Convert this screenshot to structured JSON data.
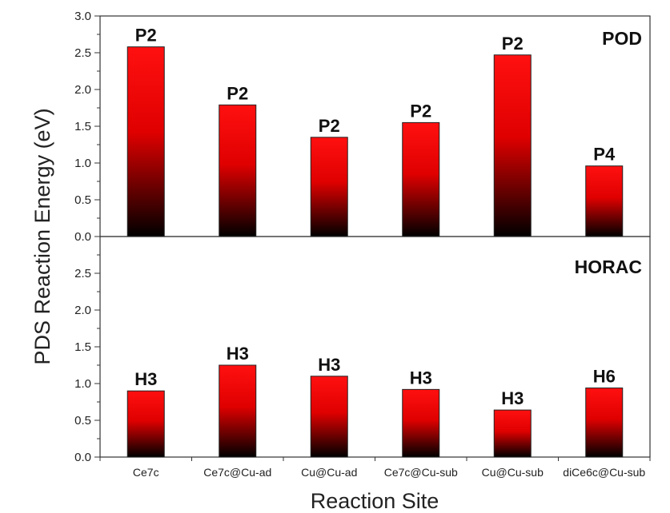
{
  "chart_data": {
    "type": "bar",
    "xlabel": "Reaction Site",
    "ylabel": "PDS Reaction Energy (eV)",
    "categories": [
      "Ce7c",
      "Ce7c@Cu-ad",
      "Cu@Cu-ad",
      "Ce7c@Cu-sub",
      "Cu@Cu-sub",
      "diCe6c@Cu-sub"
    ],
    "ylim": [
      0,
      3.0
    ],
    "yticks": [
      "0.0",
      "0.5",
      "1.0",
      "1.5",
      "2.0",
      "2.5",
      "3.0"
    ],
    "grid": false,
    "bar_gradient": {
      "top": "#ff1010",
      "bottom": "#000000"
    },
    "panels": [
      {
        "title": "POD",
        "values": [
          2.58,
          1.79,
          1.35,
          1.55,
          2.47,
          0.96
        ],
        "labels": [
          "P2",
          "P2",
          "P2",
          "P2",
          "P2",
          "P4"
        ]
      },
      {
        "title": "HORAC",
        "values": [
          0.9,
          1.25,
          1.1,
          0.92,
          0.64,
          0.94
        ],
        "labels": [
          "H3",
          "H3",
          "H3",
          "H3",
          "H3",
          "H6"
        ]
      }
    ]
  }
}
